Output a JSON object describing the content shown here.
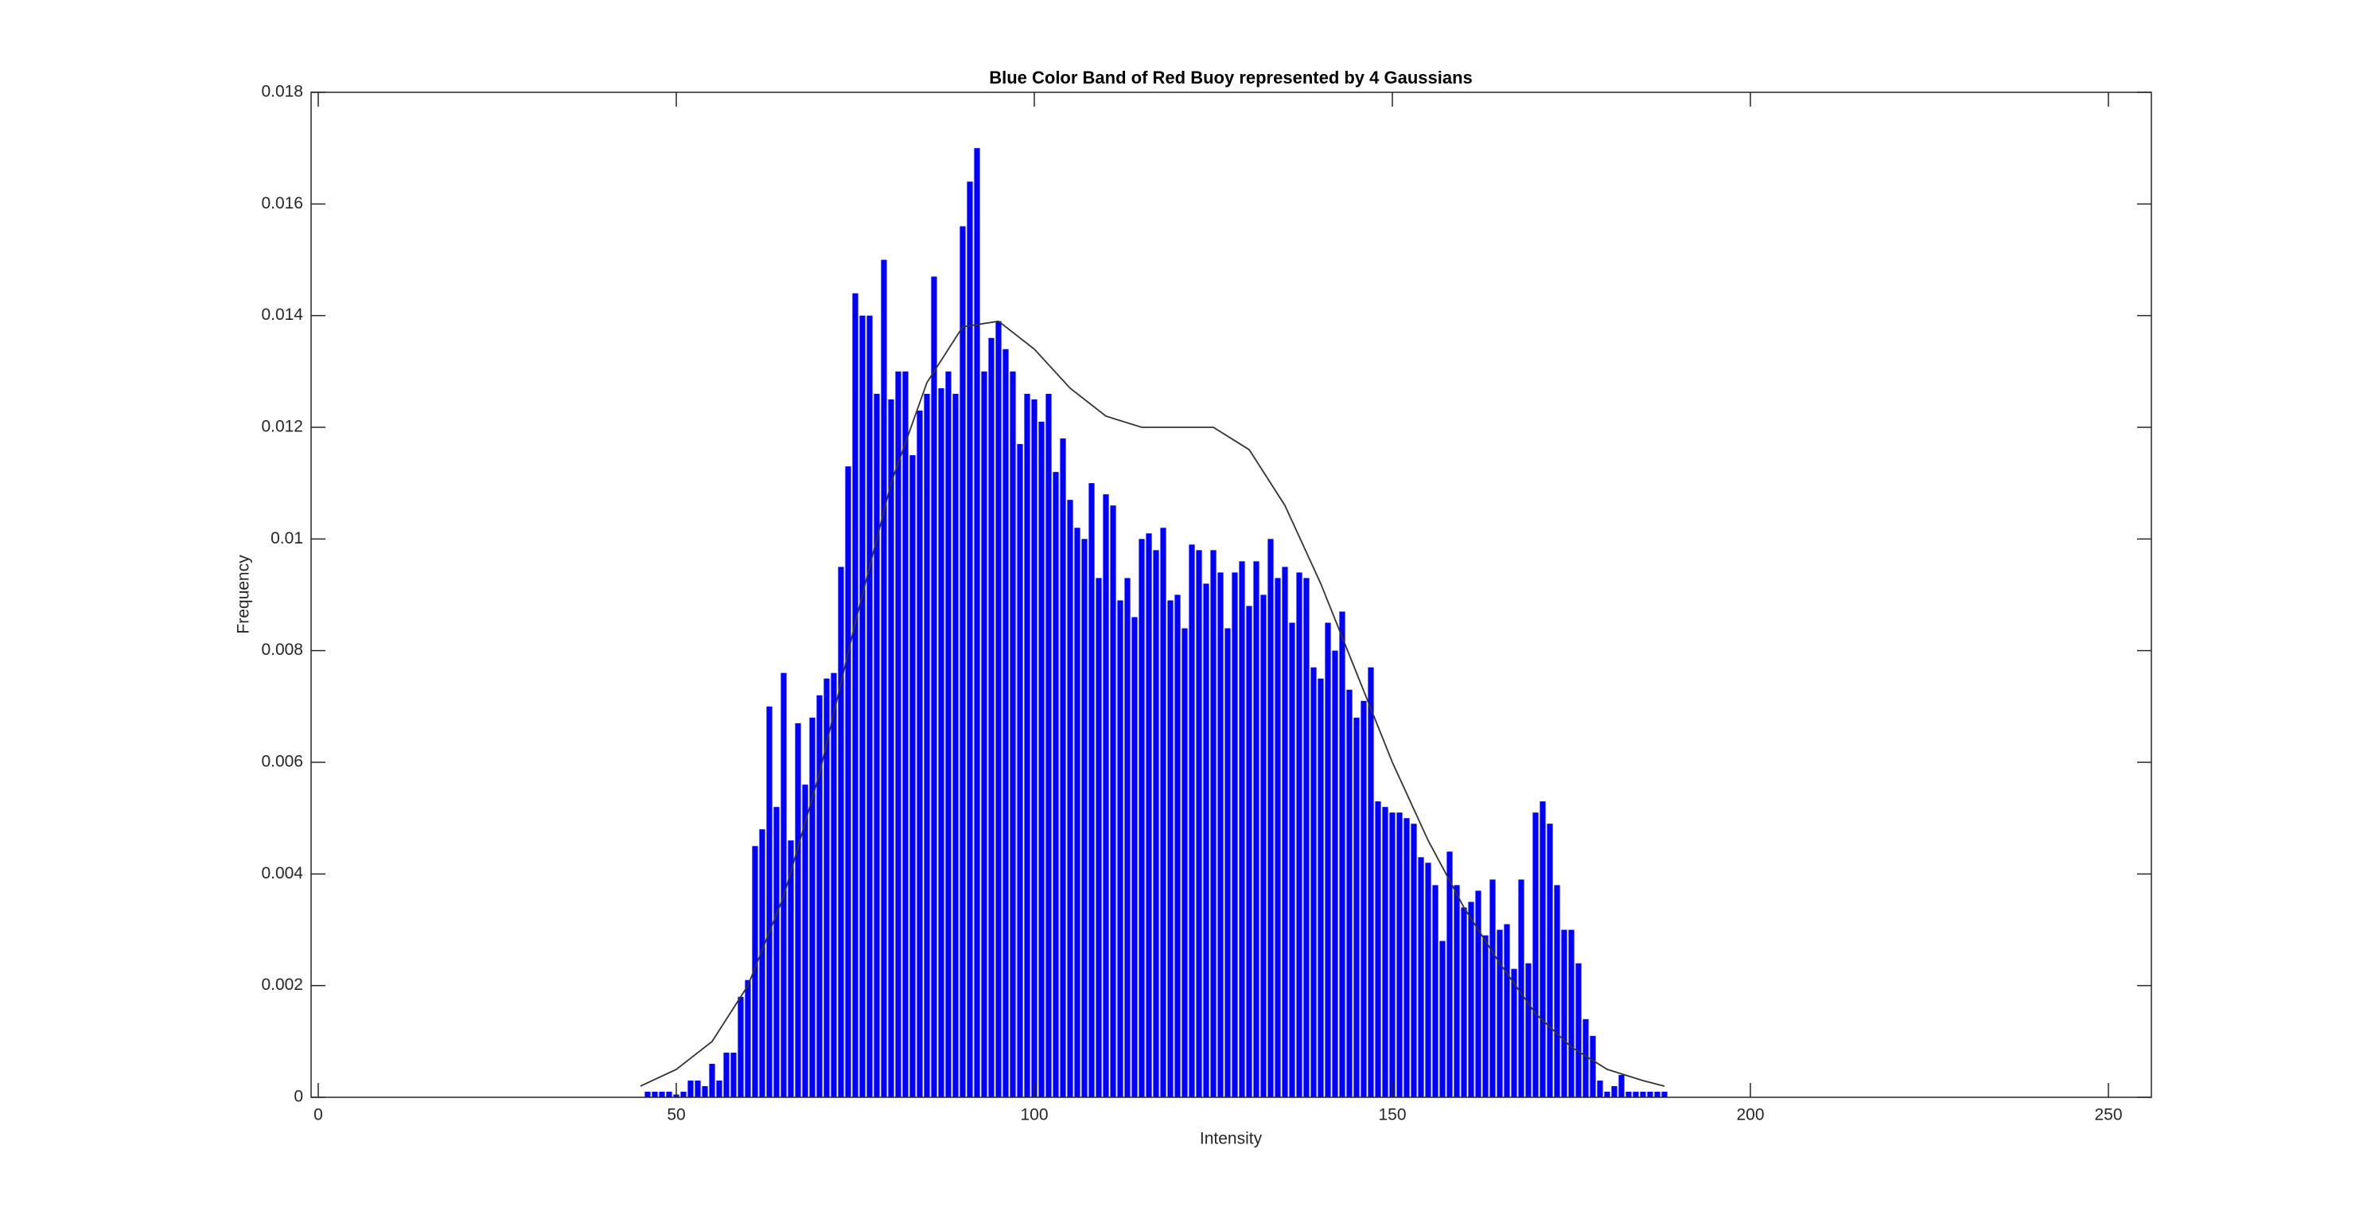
{
  "chart_data": {
    "type": "histogram",
    "title": "Blue Color Band of Red Buoy represented by 4 Gaussians",
    "xlabel": "Intensity",
    "ylabel": "Frequency",
    "color": "#0000ff",
    "x": [
      46,
      47,
      48,
      49,
      50,
      51,
      52,
      53,
      54,
      55,
      56,
      57,
      58,
      59,
      60,
      61,
      62,
      63,
      64,
      65,
      66,
      67,
      68,
      69,
      70,
      71,
      72,
      73,
      74,
      75,
      76,
      77,
      78,
      79,
      80,
      81,
      82,
      83,
      84,
      85,
      86,
      87,
      88,
      89,
      90,
      91,
      92,
      93,
      94,
      95,
      96,
      97,
      98,
      99,
      100,
      101,
      102,
      103,
      104,
      105,
      106,
      107,
      108,
      109,
      110,
      111,
      112,
      113,
      114,
      115,
      116,
      117,
      118,
      119,
      120,
      121,
      122,
      123,
      124,
      125,
      126,
      127,
      128,
      129,
      130,
      131,
      132,
      133,
      134,
      135,
      136,
      137,
      138,
      139,
      140,
      141,
      142,
      143,
      144,
      145,
      146,
      147,
      148,
      149,
      150,
      151,
      152,
      153,
      154,
      155,
      156,
      157,
      158,
      159,
      160,
      161,
      162,
      163,
      164,
      165,
      166,
      167,
      168,
      169,
      170,
      171,
      172,
      173,
      174,
      175,
      176,
      177,
      178,
      179,
      180,
      181,
      182,
      183,
      184,
      185,
      186,
      187,
      188
    ],
    "values": [
      0.0001,
      0.0001,
      0.0001,
      0.0001,
      5e-05,
      0.0001,
      0.0003,
      0.0003,
      0.0002,
      0.0006,
      0.0003,
      0.0008,
      0.0008,
      0.0018,
      0.0021,
      0.0045,
      0.0048,
      0.007,
      0.0052,
      0.0076,
      0.0046,
      0.0067,
      0.0056,
      0.0068,
      0.0072,
      0.0075,
      0.0076,
      0.0095,
      0.0113,
      0.0144,
      0.014,
      0.014,
      0.0126,
      0.015,
      0.0125,
      0.013,
      0.013,
      0.0115,
      0.0123,
      0.0126,
      0.0147,
      0.0127,
      0.013,
      0.0126,
      0.0156,
      0.0164,
      0.017,
      0.013,
      0.0136,
      0.0139,
      0.0134,
      0.013,
      0.0117,
      0.0126,
      0.0125,
      0.0121,
      0.0126,
      0.0112,
      0.0118,
      0.0107,
      0.0102,
      0.01,
      0.011,
      0.0093,
      0.0108,
      0.0106,
      0.0089,
      0.0093,
      0.0086,
      0.01,
      0.0101,
      0.0098,
      0.0102,
      0.0089,
      0.009,
      0.0084,
      0.0099,
      0.0098,
      0.0092,
      0.0098,
      0.0094,
      0.0084,
      0.0094,
      0.0096,
      0.0088,
      0.0096,
      0.009,
      0.01,
      0.0093,
      0.0095,
      0.0085,
      0.0094,
      0.0093,
      0.0077,
      0.0075,
      0.0085,
      0.008,
      0.0087,
      0.0073,
      0.0068,
      0.0071,
      0.0077,
      0.0053,
      0.0052,
      0.0051,
      0.0051,
      0.005,
      0.0049,
      0.0043,
      0.0042,
      0.0038,
      0.0028,
      0.0044,
      0.0038,
      0.0034,
      0.0035,
      0.0037,
      0.0029,
      0.0039,
      0.003,
      0.0031,
      0.0023,
      0.0039,
      0.0024,
      0.0051,
      0.0053,
      0.0049,
      0.0038,
      0.003,
      0.003,
      0.0024,
      0.0014,
      0.0011,
      0.0003,
      0.0001,
      0.0002,
      0.0004,
      0.0001,
      0.0001,
      0.0001,
      0.0001,
      0.0001,
      0.0001
    ],
    "curve": {
      "color": "#333333",
      "x": [
        45,
        50,
        55,
        60,
        65,
        70,
        75,
        80,
        85,
        90,
        95,
        100,
        105,
        110,
        115,
        120,
        125,
        130,
        135,
        140,
        145,
        150,
        155,
        160,
        165,
        170,
        175,
        180,
        185,
        188
      ],
      "values": [
        0.0002,
        0.0005,
        0.001,
        0.002,
        0.0036,
        0.0058,
        0.0085,
        0.011,
        0.0128,
        0.0138,
        0.0139,
        0.0134,
        0.0127,
        0.0122,
        0.012,
        0.012,
        0.012,
        0.0116,
        0.0106,
        0.0092,
        0.0076,
        0.006,
        0.0046,
        0.0034,
        0.0024,
        0.0015,
        0.0009,
        0.0005,
        0.0003,
        0.0002
      ]
    },
    "xlim": [
      -1,
      256
    ],
    "xticks": [
      0,
      50,
      100,
      150,
      200,
      250
    ],
    "ylim": [
      0,
      0.018
    ],
    "yticks": [
      0,
      0.002,
      0.004,
      0.006,
      0.008,
      0.01,
      0.012,
      0.014,
      0.016,
      0.018
    ],
    "grid": false
  }
}
